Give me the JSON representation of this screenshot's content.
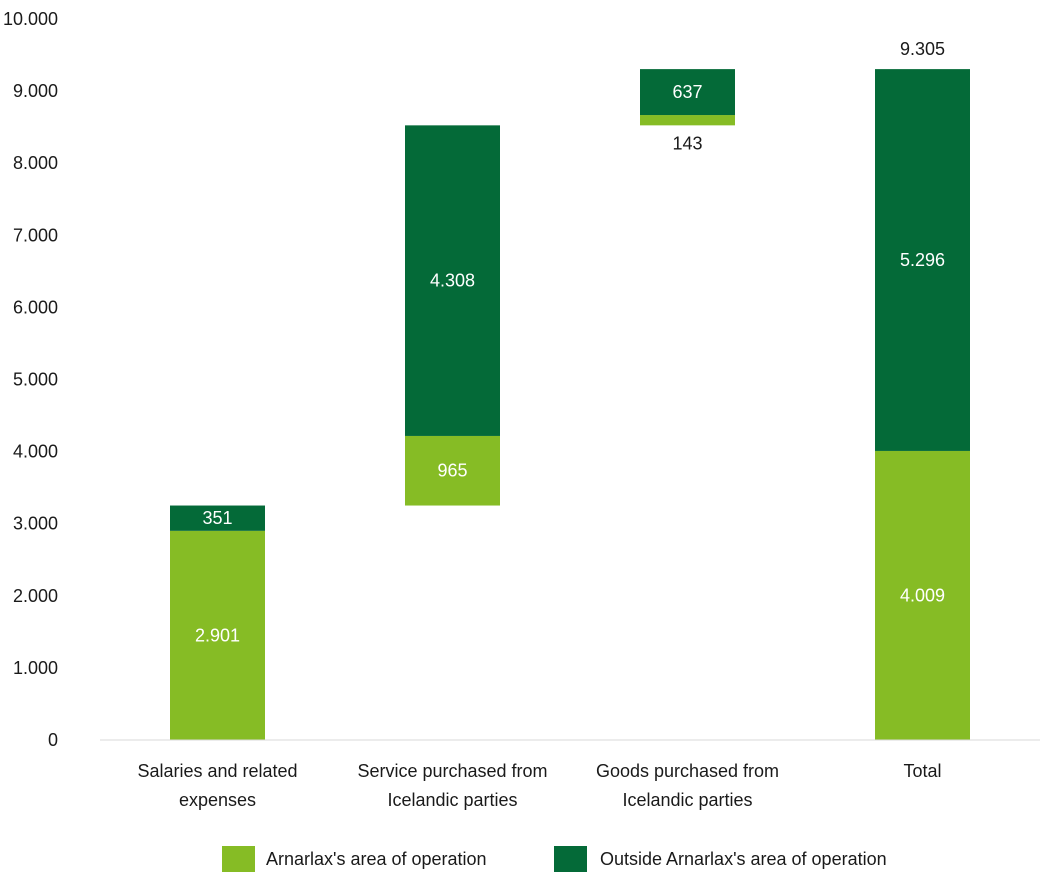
{
  "chart_data": {
    "type": "bar",
    "subtype": "waterfall-stacked",
    "title": "",
    "xlabel": "",
    "ylabel": "",
    "ylim": [
      0,
      10000
    ],
    "yticks": [
      0,
      1000,
      2000,
      3000,
      4000,
      5000,
      6000,
      7000,
      8000,
      9000,
      10000
    ],
    "ytick_labels": [
      "0",
      "1.000",
      "2.000",
      "3.000",
      "4.000",
      "5.000",
      "6.000",
      "7.000",
      "8.000",
      "9.000",
      "10.000"
    ],
    "grid": false,
    "legend_position": "bottom",
    "categories": [
      [
        "Salaries and related",
        "expenses"
      ],
      [
        "Service purchased from",
        "Icelandic parties"
      ],
      [
        "Goods purchased from",
        "Icelandic parties"
      ],
      [
        "Total"
      ]
    ],
    "bases": [
      0,
      3252,
      8525,
      0
    ],
    "series": [
      {
        "name": "Arnarlax's area of operation",
        "color": "#86bc25",
        "values": [
          2901,
          965,
          143,
          4009
        ],
        "labels": [
          "2.901",
          "965",
          "143",
          "4.009"
        ],
        "label_positions": [
          "inside",
          "inside",
          "below",
          "inside"
        ]
      },
      {
        "name": "Outside Arnarlax's area of operation",
        "color": "#046a38",
        "values": [
          351,
          4308,
          637,
          5296
        ],
        "labels": [
          "351",
          "4.308",
          "637",
          "5.296"
        ],
        "label_positions": [
          "inside",
          "inside",
          "inside",
          "inside"
        ]
      }
    ],
    "total_label": {
      "category_index": 3,
      "text": "9.305"
    }
  }
}
